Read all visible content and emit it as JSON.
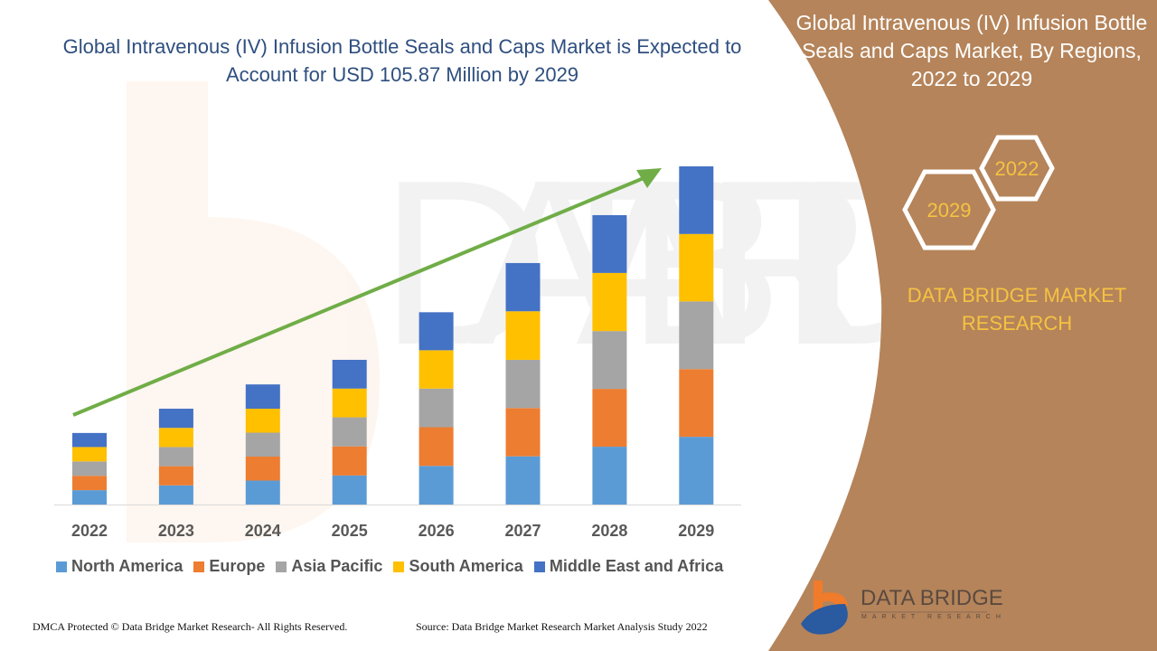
{
  "title": "Global Intravenous (IV) Infusion Bottle Seals and Caps Market is Expected to Account for USD 105.87 Million by 2029",
  "right_panel": {
    "title": "Global Intravenous (IV) Infusion Bottle Seals and Caps Market, By Regions, 2022 to 2029",
    "hex_start": "2022",
    "hex_end": "2029",
    "brand": "DATA BRIDGE MARKET RESEARCH",
    "logo_text": "DATA BRIDGE",
    "logo_subtext": "MARKET RESEARCH",
    "background_color": "#b5845a"
  },
  "footer": {
    "dmca": "DMCA Protected © Data Bridge Market Research- All Rights Reserved.",
    "source": "Source: Data Bridge Market Research Market Analysis Study 2022"
  },
  "chart_data": {
    "type": "bar",
    "stacked": true,
    "title": "",
    "xlabel": "",
    "ylabel": "",
    "grid": false,
    "legend_position": "bottom",
    "trend_arrow": true,
    "categories": [
      "2022",
      "2023",
      "2024",
      "2025",
      "2026",
      "2027",
      "2028",
      "2029"
    ],
    "series": [
      {
        "name": "North America",
        "color": "#5b9bd5",
        "values": [
          4.5,
          6.0,
          7.5,
          9.1,
          12.1,
          15.1,
          18.1,
          21.2
        ]
      },
      {
        "name": "Europe",
        "color": "#ed7d31",
        "values": [
          4.5,
          6.0,
          7.5,
          9.1,
          12.1,
          15.1,
          18.1,
          21.2
        ]
      },
      {
        "name": "Asia Pacific",
        "color": "#a5a5a5",
        "values": [
          4.5,
          6.0,
          7.5,
          9.1,
          12.1,
          15.1,
          18.1,
          21.2
        ]
      },
      {
        "name": "South America",
        "color": "#ffc000",
        "values": [
          4.5,
          6.0,
          7.5,
          9.0,
          12.0,
          15.2,
          18.2,
          21.1
        ]
      },
      {
        "name": "Middle East and Africa",
        "color": "#4472c4",
        "values": [
          4.4,
          6.0,
          7.6,
          9.0,
          11.9,
          15.1,
          18.1,
          21.17
        ]
      }
    ],
    "arrow_color": "#70ad47"
  }
}
